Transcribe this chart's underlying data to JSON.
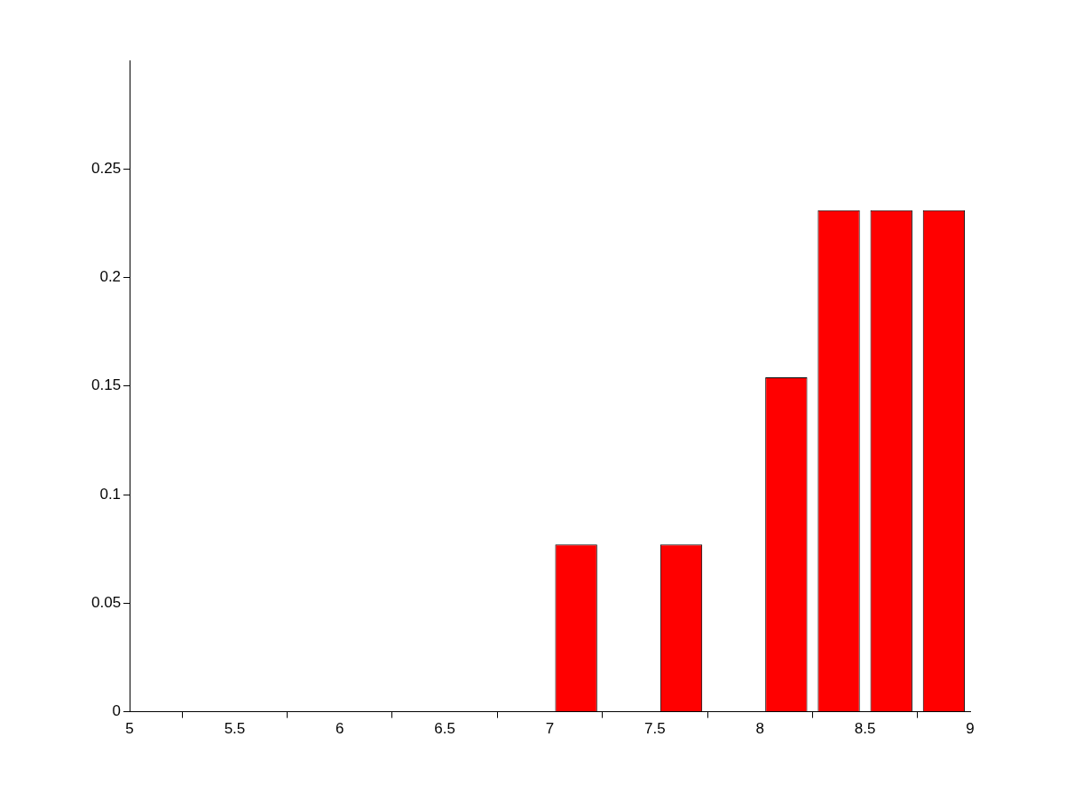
{
  "chart_data": {
    "type": "bar",
    "x": [
      7.125,
      7.625,
      8.125,
      8.375,
      8.625,
      8.875
    ],
    "values": [
      0.077,
      0.077,
      0.154,
      0.231,
      0.231,
      0.231
    ],
    "color": "#ff0000",
    "xlim": [
      5,
      9
    ],
    "xticks": [
      5,
      5.5,
      6,
      6.5,
      7,
      7.5,
      8,
      8.5,
      9
    ],
    "ylim": [
      0,
      0.3
    ],
    "yticks": [
      0,
      0.05,
      0.1,
      0.15,
      0.2,
      0.25
    ]
  }
}
